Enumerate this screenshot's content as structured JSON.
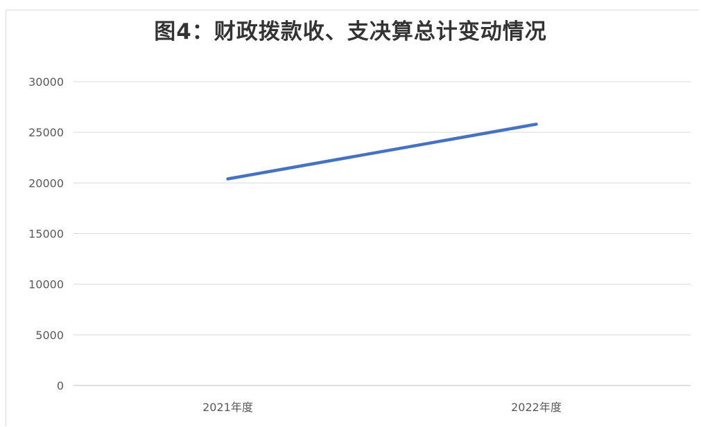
{
  "chart_data": {
    "type": "line",
    "title": "图4：财政拨款收、支决算总计变动情况",
    "categories": [
      "2021年度",
      "2022年度"
    ],
    "series": [
      {
        "values": [
          20400,
          25800
        ]
      }
    ],
    "ylim": [
      0,
      30000
    ],
    "yticks": [
      "0",
      "5000",
      "10000",
      "15000",
      "20000",
      "25000",
      "30000"
    ],
    "grid": true,
    "colors": {
      "line": "#4472c4",
      "grid": "#d9d9d9",
      "axis": "#bfbfbf",
      "text": "#595959"
    }
  }
}
